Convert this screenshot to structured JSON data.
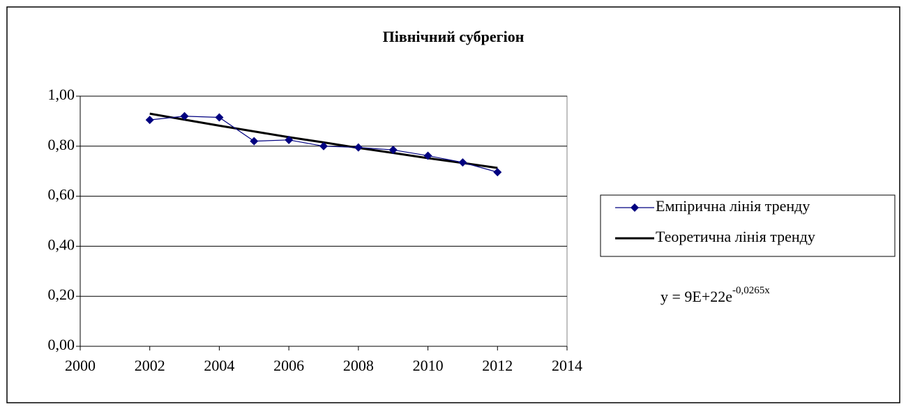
{
  "chart_data": {
    "type": "line",
    "title": "Північний субрегіон",
    "x": [
      2002,
      2003,
      2004,
      2005,
      2006,
      2007,
      2008,
      2009,
      2010,
      2011,
      2012
    ],
    "series": [
      {
        "name": "Емпірична лінія тренду",
        "color": "#000080",
        "marker": "diamond",
        "values": [
          0.905,
          0.92,
          0.915,
          0.82,
          0.825,
          0.8,
          0.795,
          0.785,
          0.762,
          0.735,
          0.696
        ]
      },
      {
        "name": "Теоретична лінія тренду",
        "color": "#000000",
        "values": [
          0.93,
          0.906,
          0.882,
          0.859,
          0.836,
          0.815,
          0.793,
          0.773,
          0.752,
          0.733,
          0.713
        ]
      }
    ],
    "xlim": [
      2000,
      2014
    ],
    "xticks": [
      2000,
      2002,
      2004,
      2006,
      2008,
      2010,
      2012,
      2014
    ],
    "ylim": [
      0,
      1
    ],
    "yticks": [
      {
        "value": 0,
        "label": "0,00"
      },
      {
        "value": 0.2,
        "label": "0,20"
      },
      {
        "value": 0.4,
        "label": "0,40"
      },
      {
        "value": 0.6,
        "label": "0,60"
      },
      {
        "value": 0.8,
        "label": "0,80"
      },
      {
        "value": 1,
        "label": "1,00"
      }
    ],
    "grid": true,
    "legend": "right",
    "equation": {
      "base": "y = 9E+22e",
      "exponent": "-0,0265x"
    }
  }
}
